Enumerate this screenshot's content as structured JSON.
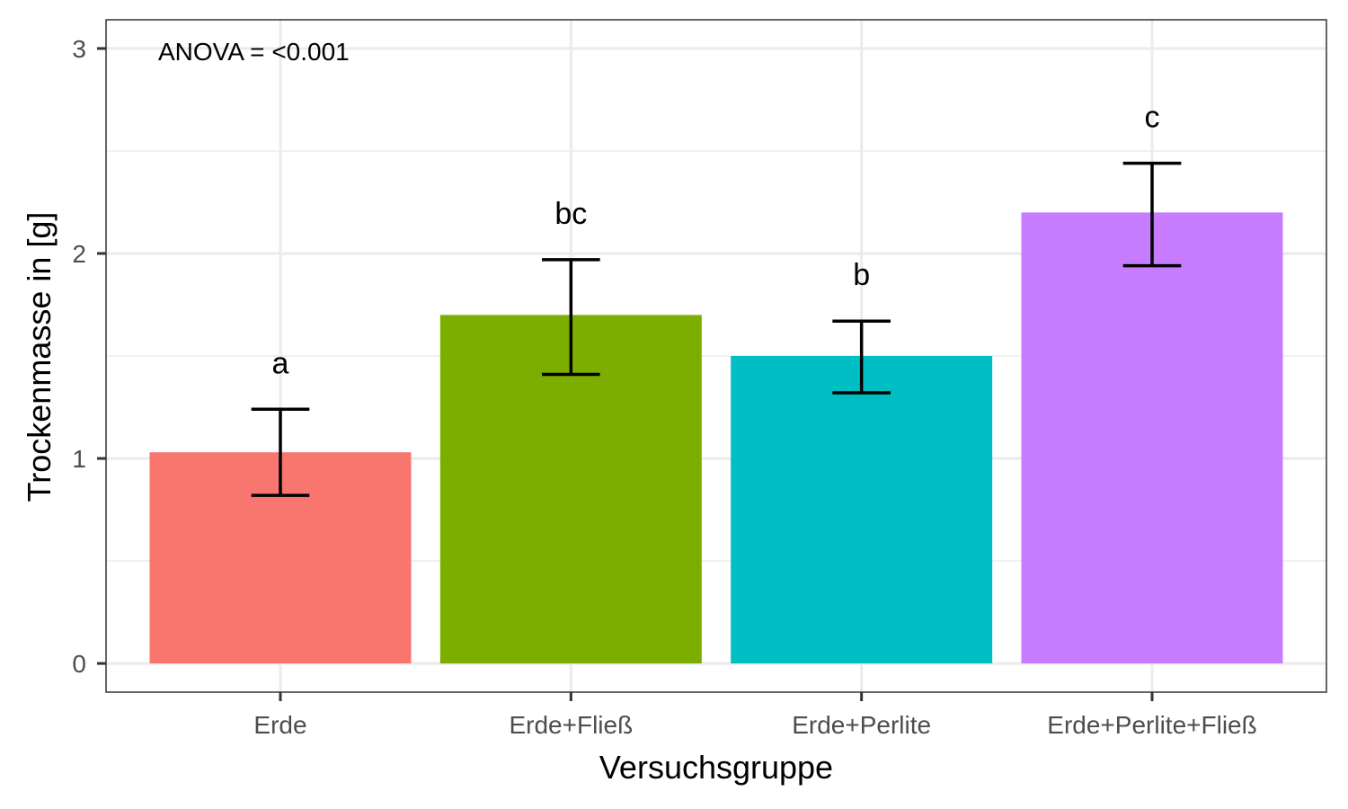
{
  "chart_data": {
    "type": "bar",
    "annotation": "ANOVA = <0.001",
    "xlabel": "Versuchsgruppe",
    "ylabel": "Trockenmasse in [g]",
    "ylim": [
      -0.14,
      3.14
    ],
    "yticks": [
      "0",
      "1",
      "2",
      "3"
    ],
    "ytick_values": [
      0,
      1,
      2,
      3
    ],
    "grid": true,
    "categories": [
      "Erde",
      "Erde+Fließ",
      "Erde+Perlite",
      "Erde+Perlite+Fließ"
    ],
    "values": [
      1.03,
      1.7,
      1.5,
      2.2
    ],
    "error_low": [
      0.82,
      1.41,
      1.32,
      1.94
    ],
    "error_high": [
      1.24,
      1.97,
      1.67,
      2.44
    ],
    "significance_labels": [
      "a",
      "bc",
      "b",
      "c"
    ],
    "colors": [
      "#F8766D",
      "#7CAE00",
      "#00BFC4",
      "#C77CFF"
    ]
  }
}
